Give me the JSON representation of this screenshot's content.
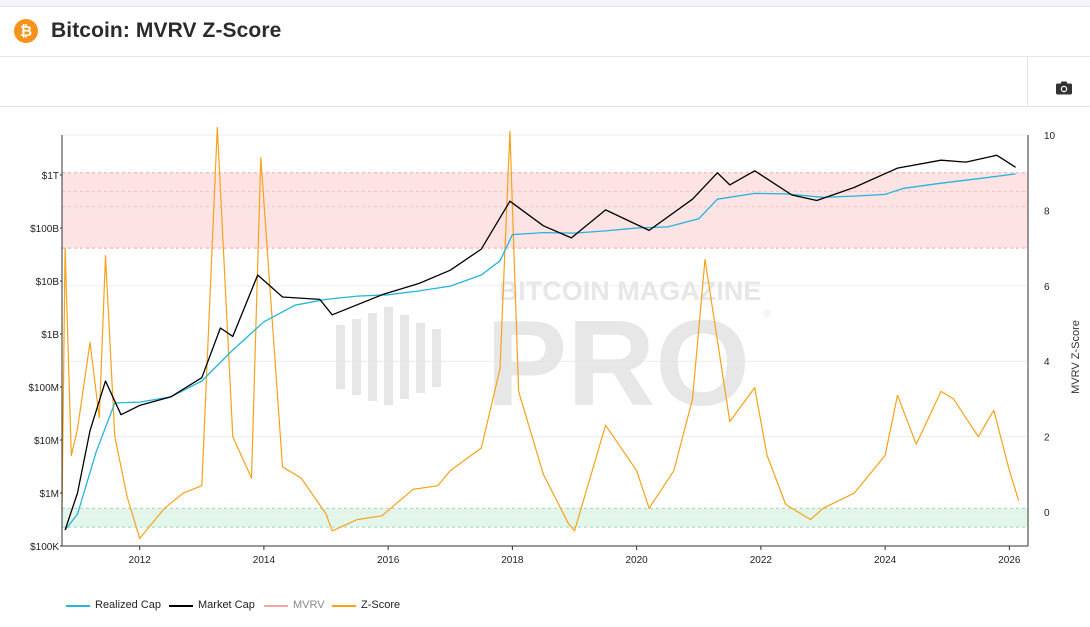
{
  "header": {
    "logo_symbol": "₿",
    "title": "Bitcoin: MVRV Z-Score"
  },
  "toolbar": {
    "camera_icon": "camera-icon"
  },
  "colors": {
    "realized": "#24b4dc",
    "market": "#000000",
    "mvrv": "#f4a6a6",
    "zscore": "#f7a21b",
    "red_band": "#fde3e3",
    "green_band": "#e2f6ea"
  },
  "watermark": {
    "top_text": "BITCOIN MAGAZINE",
    "big_text": "PRO",
    "mark": "®"
  },
  "chart_data": {
    "type": "line",
    "x_ticks": [
      "2012",
      "2014",
      "2016",
      "2018",
      "2020",
      "2022",
      "2024",
      "2026"
    ],
    "y_left": {
      "scale": "log",
      "ticks": [
        "$100K",
        "$1M",
        "$10M",
        "$100M",
        "$1B",
        "$10B",
        "$100B",
        "$1T"
      ]
    },
    "y_right": {
      "label": "MVRV Z-Score",
      "ticks": [
        "0",
        "2",
        "4",
        "6",
        "8",
        "10"
      ],
      "range": [
        -0.9,
        10
      ]
    },
    "bands": [
      {
        "name": "overvalued",
        "from": 7.0,
        "to": 9.0
      },
      {
        "name": "undervalued",
        "from": -0.4,
        "to": 0.1
      }
    ],
    "series": [
      {
        "name": "Realized Cap",
        "axis": "left",
        "points": [
          [
            2010.8,
            200000.0
          ],
          [
            2011.0,
            400000.0
          ],
          [
            2011.3,
            6000000.0
          ],
          [
            2011.6,
            50000000.0
          ],
          [
            2012.0,
            52000000.0
          ],
          [
            2012.5,
            65000000.0
          ],
          [
            2013.0,
            130000000.0
          ],
          [
            2013.5,
            500000000.0
          ],
          [
            2014.0,
            1700000000.0
          ],
          [
            2014.5,
            3500000000.0
          ],
          [
            2015.0,
            4500000000.0
          ],
          [
            2015.5,
            5200000000.0
          ],
          [
            2016.0,
            5500000000.0
          ],
          [
            2016.5,
            6500000000.0
          ],
          [
            2017.0,
            8000000000.0
          ],
          [
            2017.5,
            13000000000.0
          ],
          [
            2017.8,
            24000000000.0
          ],
          [
            2018.0,
            75000000000.0
          ],
          [
            2018.5,
            82000000000.0
          ],
          [
            2019.0,
            80000000000.0
          ],
          [
            2019.5,
            88000000000.0
          ],
          [
            2020.0,
            100000000000.0
          ],
          [
            2020.5,
            105000000000.0
          ],
          [
            2021.0,
            150000000000.0
          ],
          [
            2021.3,
            350000000000.0
          ],
          [
            2021.9,
            450000000000.0
          ],
          [
            2022.4,
            440000000000.0
          ],
          [
            2023.0,
            380000000000.0
          ],
          [
            2023.5,
            400000000000.0
          ],
          [
            2024.0,
            430000000000.0
          ],
          [
            2024.3,
            560000000000.0
          ],
          [
            2024.9,
            700000000000.0
          ],
          [
            2025.5,
            850000000000.0
          ],
          [
            2026.1,
            1050000000000.0
          ]
        ]
      },
      {
        "name": "Market Cap",
        "axis": "left",
        "points": [
          [
            2010.8,
            200000.0
          ],
          [
            2011.0,
            1000000.0
          ],
          [
            2011.2,
            15000000.0
          ],
          [
            2011.45,
            130000000.0
          ],
          [
            2011.7,
            30000000.0
          ],
          [
            2012.0,
            45000000.0
          ],
          [
            2012.5,
            65000000.0
          ],
          [
            2013.0,
            150000000.0
          ],
          [
            2013.3,
            1300000000.0
          ],
          [
            2013.5,
            900000000.0
          ],
          [
            2013.9,
            13000000000.0
          ],
          [
            2014.3,
            5000000000.0
          ],
          [
            2014.9,
            4500000000.0
          ],
          [
            2015.1,
            2300000000.0
          ],
          [
            2015.9,
            5500000000.0
          ],
          [
            2016.5,
            9000000000.0
          ],
          [
            2017.0,
            16000000000.0
          ],
          [
            2017.5,
            40000000000.0
          ],
          [
            2017.96,
            320000000000.0
          ],
          [
            2018.5,
            110000000000.0
          ],
          [
            2018.95,
            65000000000.0
          ],
          [
            2019.5,
            220000000000.0
          ],
          [
            2020.2,
            90000000000.0
          ],
          [
            2020.9,
            350000000000.0
          ],
          [
            2021.3,
            1100000000000.0
          ],
          [
            2021.5,
            650000000000.0
          ],
          [
            2021.9,
            1200000000000.0
          ],
          [
            2022.5,
            420000000000.0
          ],
          [
            2022.9,
            330000000000.0
          ],
          [
            2023.5,
            580000000000.0
          ],
          [
            2024.2,
            1350000000000.0
          ],
          [
            2024.9,
            1900000000000.0
          ],
          [
            2025.3,
            1750000000000.0
          ],
          [
            2025.8,
            2350000000000.0
          ],
          [
            2026.1,
            1400000000000.0
          ]
        ]
      },
      {
        "name": "MVRV",
        "axis": "right",
        "points": []
      },
      {
        "name": "Z-Score",
        "axis": "right",
        "points": [
          [
            2010.75,
            0
          ],
          [
            2010.8,
            7.0
          ],
          [
            2010.9,
            1.5
          ],
          [
            2011.0,
            2.2
          ],
          [
            2011.2,
            4.5
          ],
          [
            2011.35,
            2.5
          ],
          [
            2011.45,
            6.8
          ],
          [
            2011.6,
            2.0
          ],
          [
            2011.8,
            0.4
          ],
          [
            2012.0,
            -0.7
          ],
          [
            2012.4,
            0.1
          ],
          [
            2012.7,
            0.5
          ],
          [
            2013.0,
            0.7
          ],
          [
            2013.25,
            10.2
          ],
          [
            2013.5,
            2.0
          ],
          [
            2013.8,
            0.9
          ],
          [
            2013.95,
            9.4
          ],
          [
            2014.3,
            1.2
          ],
          [
            2014.6,
            0.9
          ],
          [
            2015.0,
            -0.05
          ],
          [
            2015.1,
            -0.5
          ],
          [
            2015.5,
            -0.2
          ],
          [
            2015.9,
            -0.1
          ],
          [
            2016.4,
            0.6
          ],
          [
            2016.8,
            0.7
          ],
          [
            2017.0,
            1.1
          ],
          [
            2017.5,
            1.7
          ],
          [
            2017.8,
            3.8
          ],
          [
            2017.96,
            10.1
          ],
          [
            2018.1,
            3.2
          ],
          [
            2018.5,
            1.0
          ],
          [
            2018.9,
            -0.3
          ],
          [
            2019.0,
            -0.5
          ],
          [
            2019.5,
            2.3
          ],
          [
            2020.0,
            1.1
          ],
          [
            2020.2,
            0.1
          ],
          [
            2020.6,
            1.1
          ],
          [
            2020.9,
            3.0
          ],
          [
            2021.1,
            6.7
          ],
          [
            2021.5,
            2.4
          ],
          [
            2021.9,
            3.3
          ],
          [
            2022.1,
            1.5
          ],
          [
            2022.4,
            0.2
          ],
          [
            2022.8,
            -0.2
          ],
          [
            2023.0,
            0.1
          ],
          [
            2023.5,
            0.5
          ],
          [
            2024.0,
            1.5
          ],
          [
            2024.2,
            3.1
          ],
          [
            2024.5,
            1.8
          ],
          [
            2024.9,
            3.2
          ],
          [
            2025.1,
            3.0
          ],
          [
            2025.5,
            2.0
          ],
          [
            2025.75,
            2.7
          ],
          [
            2026.0,
            1.1
          ],
          [
            2026.15,
            0.3
          ]
        ]
      }
    ],
    "legend": [
      "Realized Cap",
      "Market Cap",
      "MVRV",
      "Z-Score"
    ],
    "legend_placement": "bottom-left"
  }
}
